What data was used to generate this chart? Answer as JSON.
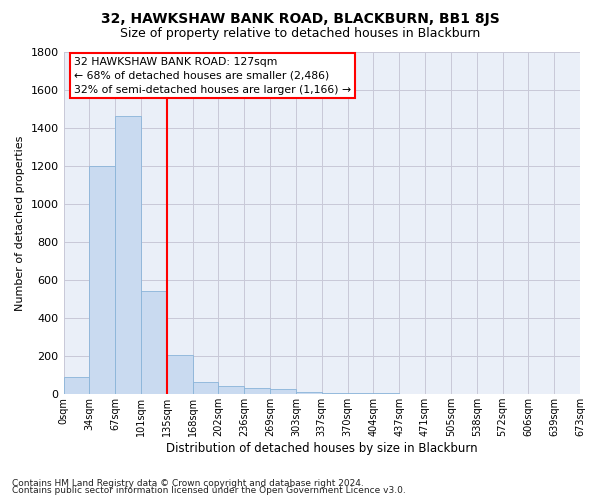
{
  "title1": "32, HAWKSHAW BANK ROAD, BLACKBURN, BB1 8JS",
  "title2": "Size of property relative to detached houses in Blackburn",
  "xlabel": "Distribution of detached houses by size in Blackburn",
  "ylabel": "Number of detached properties",
  "footnote1": "Contains HM Land Registry data © Crown copyright and database right 2024.",
  "footnote2": "Contains public sector information licensed under the Open Government Licence v3.0.",
  "bin_labels": [
    "0sqm",
    "34sqm",
    "67sqm",
    "101sqm",
    "135sqm",
    "168sqm",
    "202sqm",
    "236sqm",
    "269sqm",
    "303sqm",
    "337sqm",
    "370sqm",
    "404sqm",
    "437sqm",
    "471sqm",
    "505sqm",
    "538sqm",
    "572sqm",
    "606sqm",
    "639sqm",
    "673sqm"
  ],
  "bar_heights": [
    90,
    1200,
    1460,
    540,
    205,
    65,
    45,
    35,
    28,
    10,
    5,
    5,
    5,
    0,
    0,
    0,
    0,
    0,
    0,
    0
  ],
  "bar_color": "#c9daf0",
  "bar_edge_color": "#8ab4d9",
  "grid_color": "#c8c8d8",
  "vline_x": 4.0,
  "vline_color": "red",
  "annotation_text": "32 HAWKSHAW BANK ROAD: 127sqm\n← 68% of detached houses are smaller (2,486)\n32% of semi-detached houses are larger (1,166) →",
  "annotation_box_color": "white",
  "annotation_box_edge": "red",
  "ylim": [
    0,
    1800
  ],
  "yticks": [
    0,
    200,
    400,
    600,
    800,
    1000,
    1200,
    1400,
    1600,
    1800
  ],
  "bg_color": "#eaeff8",
  "title1_fontsize": 10,
  "title2_fontsize": 9
}
